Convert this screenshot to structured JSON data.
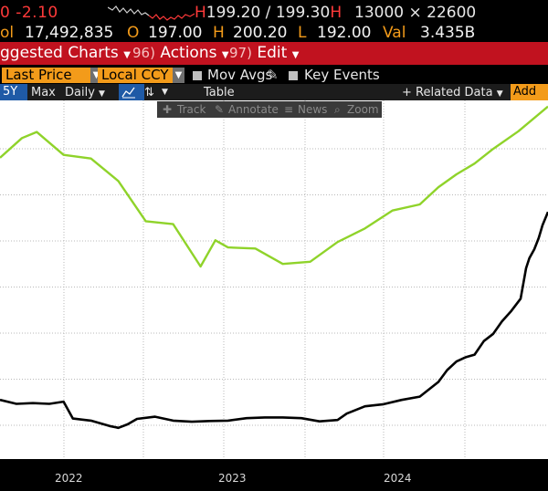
{
  "quote": {
    "change": "0 -2.10",
    "bid_ask_prefix": "H",
    "bid_ask": "199.20 / 199.30",
    "bid_ask_suffix": "H",
    "size": "13000 × 22600"
  },
  "stats": {
    "vol_label": "ol",
    "vol_value": "17,492,835",
    "open_label": "O",
    "open_value": "197.00",
    "high_label": "H",
    "high_value": "200.20",
    "low_label": "L",
    "low_value": "192.00",
    "val_label": "Val",
    "val_value": "3.435B"
  },
  "menu": {
    "suggested": "ggested Charts",
    "actions_num": "96)",
    "actions": "Actions",
    "edit_num": "97)",
    "edit": "Edit"
  },
  "toolbar": {
    "price_field": "Last Price",
    "currency": "Local CCY",
    "mov_avgs": "Mov Avgs",
    "key_events": "Key Events"
  },
  "range_bar": {
    "range_5y": "5Y",
    "max": "Max",
    "frequency": "Daily",
    "table": "Table",
    "related": "+ Related Data",
    "add": "Add D"
  },
  "chart_tools": {
    "track": "Track",
    "annotate": "Annotate",
    "news": "News",
    "zoom": "Zoom"
  },
  "chart_data": {
    "type": "line",
    "x_ticks": [
      "2022",
      "2023",
      "2024"
    ],
    "ylim": [
      0,
      100
    ],
    "series": [
      {
        "color": "#8fd32a",
        "points": [
          [
            0,
            84
          ],
          [
            0.04,
            89.5
          ],
          [
            0.067,
            91.2
          ],
          [
            0.116,
            84.8
          ],
          [
            0.166,
            83.8
          ],
          [
            0.216,
            77.5
          ],
          [
            0.266,
            66.3
          ],
          [
            0.316,
            65.5
          ],
          [
            0.366,
            53.7
          ],
          [
            0.393,
            61
          ],
          [
            0.416,
            59
          ],
          [
            0.466,
            58.7
          ],
          [
            0.516,
            54.4
          ],
          [
            0.566,
            55
          ],
          [
            0.616,
            60.5
          ],
          [
            0.666,
            64.3
          ],
          [
            0.716,
            69.3
          ],
          [
            0.766,
            71
          ],
          [
            0.8,
            75.8
          ],
          [
            0.833,
            79.4
          ],
          [
            0.866,
            82.4
          ],
          [
            0.9,
            86.5
          ],
          [
            0.946,
            91.4
          ],
          [
            1,
            98.3
          ]
        ]
      },
      {
        "color": "#000000",
        "points": [
          [
            0,
            16.5
          ],
          [
            0.03,
            15.4
          ],
          [
            0.06,
            15.6
          ],
          [
            0.09,
            15.4
          ],
          [
            0.116,
            16
          ],
          [
            0.133,
            11.3
          ],
          [
            0.166,
            10.7
          ],
          [
            0.2,
            9.2
          ],
          [
            0.216,
            8.7
          ],
          [
            0.233,
            9.7
          ],
          [
            0.25,
            11.2
          ],
          [
            0.283,
            11.8
          ],
          [
            0.316,
            10.7
          ],
          [
            0.35,
            10.4
          ],
          [
            0.383,
            10.6
          ],
          [
            0.416,
            10.7
          ],
          [
            0.45,
            11.4
          ],
          [
            0.483,
            11.6
          ],
          [
            0.516,
            11.6
          ],
          [
            0.55,
            11.4
          ],
          [
            0.583,
            10.5
          ],
          [
            0.616,
            10.9
          ],
          [
            0.633,
            12.7
          ],
          [
            0.666,
            14.7
          ],
          [
            0.7,
            15.3
          ],
          [
            0.733,
            16.5
          ],
          [
            0.766,
            17.4
          ],
          [
            0.8,
            21.5
          ],
          [
            0.816,
            24.8
          ],
          [
            0.833,
            27.2
          ],
          [
            0.85,
            28.4
          ],
          [
            0.866,
            29.1
          ],
          [
            0.883,
            32.9
          ],
          [
            0.9,
            34.9
          ],
          [
            0.916,
            38.4
          ],
          [
            0.933,
            41.3
          ],
          [
            0.95,
            44.7
          ],
          [
            0.96,
            53.2
          ],
          [
            0.966,
            56
          ],
          [
            0.975,
            58.5
          ],
          [
            0.983,
            61.6
          ],
          [
            0.99,
            65.2
          ],
          [
            1,
            68.9
          ]
        ]
      }
    ]
  }
}
